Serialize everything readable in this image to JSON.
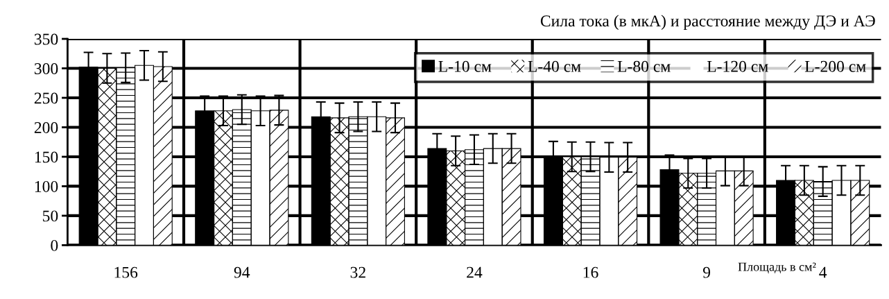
{
  "chart_data": {
    "type": "bar",
    "title": "Сила тока (в мкА) и расстояние между ДЭ и АЭ",
    "xlabel": "Площадь в см²",
    "categories": [
      "156",
      "94",
      "32",
      "24",
      "16",
      "9",
      "4"
    ],
    "series": [
      {
        "name": "L-10 см",
        "color": "#000000",
        "values": [
          302,
          228,
          218,
          164,
          151,
          128,
          110
        ],
        "errors": [
          25,
          25,
          25,
          25,
          25,
          25,
          25
        ]
      },
      {
        "name": "L-40 см",
        "color": "#ffffff",
        "values": [
          300,
          228,
          216,
          160,
          150,
          122,
          110
        ],
        "errors": [
          25,
          25,
          25,
          25,
          25,
          25,
          25
        ]
      },
      {
        "name": "L-80 см",
        "color": "#ffffff",
        "values": [
          301,
          230,
          218,
          162,
          150,
          122,
          108
        ],
        "errors": [
          25,
          25,
          25,
          25,
          25,
          25,
          25
        ]
      },
      {
        "name": "L-120 см",
        "color": "#ffffff",
        "values": [
          305,
          228,
          218,
          164,
          149,
          126,
          110
        ],
        "errors": [
          25,
          25,
          25,
          25,
          25,
          25,
          25
        ]
      },
      {
        "name": "L-200 см",
        "color": "#ffffff",
        "values": [
          303,
          229,
          216,
          164,
          149,
          126,
          110
        ],
        "errors": [
          25,
          25,
          25,
          25,
          25,
          25,
          25
        ]
      }
    ],
    "ylim": [
      0,
      350
    ],
    "yticks": [
      0,
      50,
      100,
      150,
      200,
      250,
      300,
      350
    ],
    "grid": true,
    "legend": "top right"
  }
}
